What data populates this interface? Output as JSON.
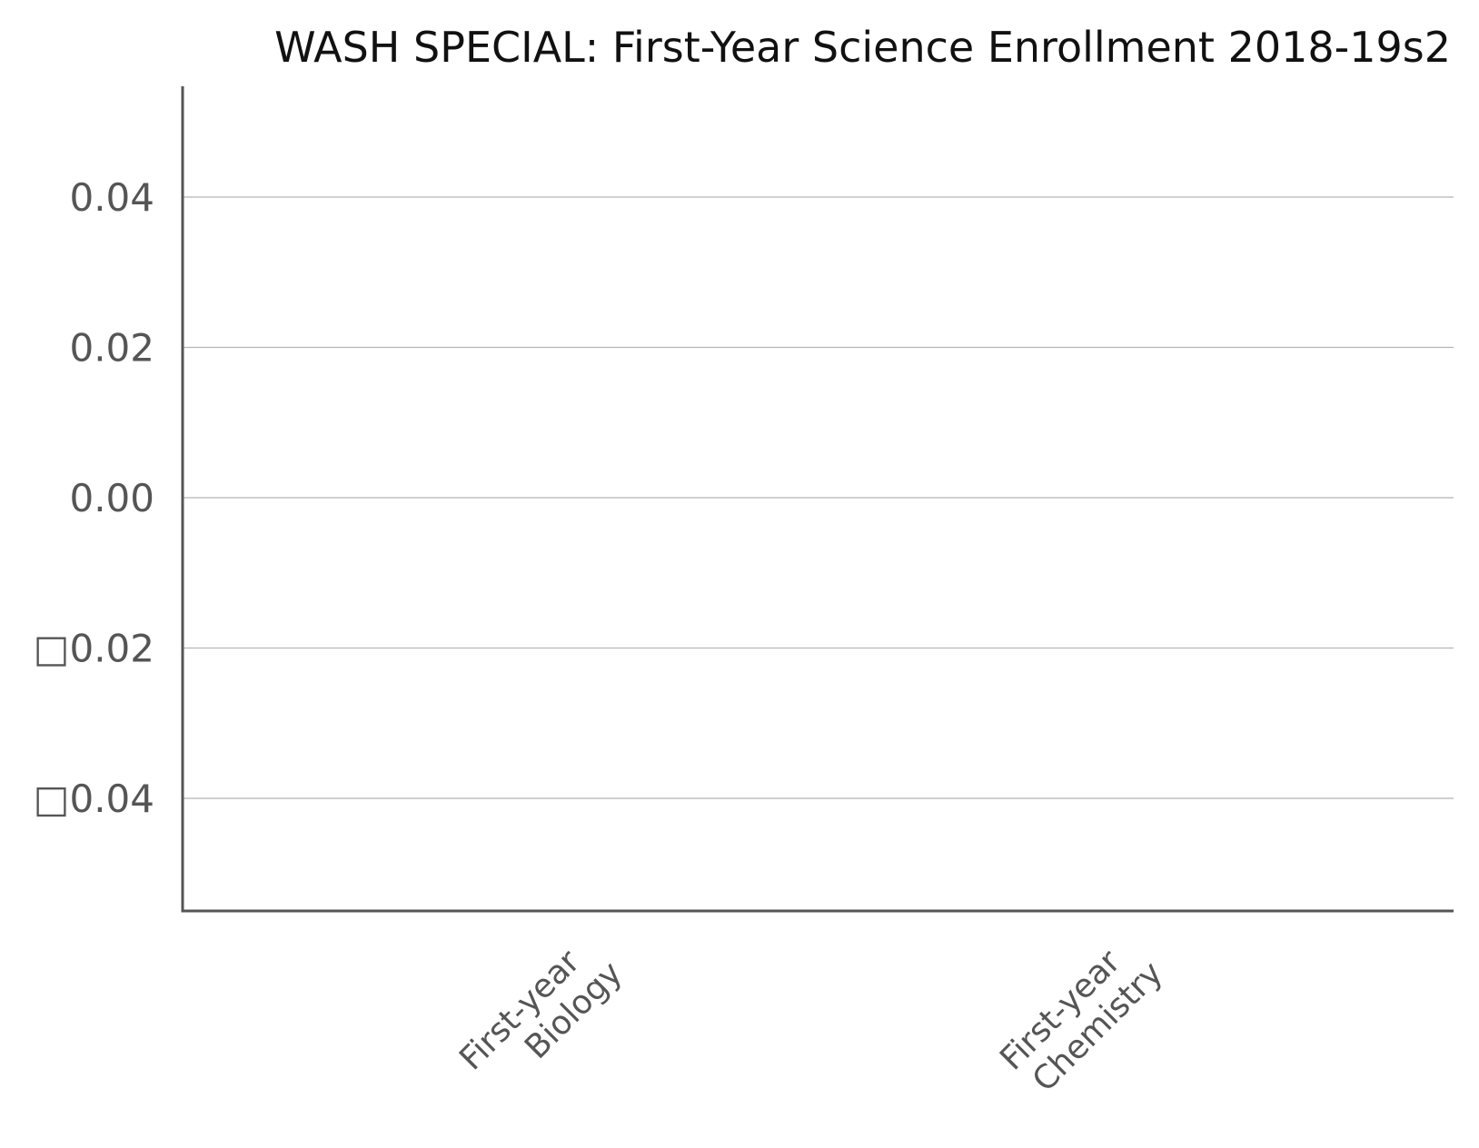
{
  "chart_data": {
    "type": "bar",
    "title": "WASH SPECIAL: First-Year Science Enrollment 2018-19s2",
    "xlabel": "",
    "ylabel": "",
    "categories": [
      [
        "First-year",
        "Biology"
      ],
      [
        "First-year",
        "Chemistry"
      ]
    ],
    "values": [
      0,
      0
    ],
    "ylim": [
      -0.055,
      0.055
    ],
    "yticks": [
      0.04,
      0.02,
      0.0,
      -0.02,
      -0.04
    ],
    "ytick_labels": [
      "0.04",
      "0.02",
      "0.00",
      "□0.02",
      "□0.04"
    ],
    "grid": true,
    "legend": "none",
    "colors": {
      "axis": "#555555",
      "grid": "#b5b5b5",
      "text": "#555555",
      "title": "#111111"
    }
  }
}
